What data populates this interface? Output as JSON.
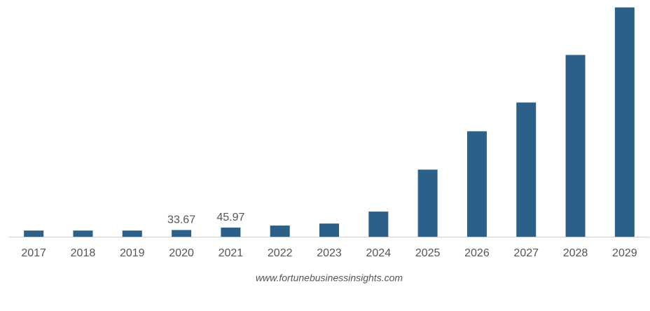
{
  "chart_data": {
    "type": "bar",
    "categories": [
      "2017",
      "2018",
      "2019",
      "2020",
      "2021",
      "2022",
      "2023",
      "2024",
      "2025",
      "2026",
      "2027",
      "2028",
      "2029"
    ],
    "values": [
      31,
      31,
      31,
      33.67,
      45.97,
      56,
      66,
      126,
      336,
      528,
      672,
      910,
      1148
    ],
    "value_labels": [
      null,
      null,
      null,
      "33.67",
      "45.97",
      null,
      null,
      null,
      null,
      null,
      null,
      null,
      null
    ],
    "color": "#2b6089",
    "ylim": [
      0,
      1150
    ],
    "source": "www.fortunebusinessinsights.com"
  }
}
